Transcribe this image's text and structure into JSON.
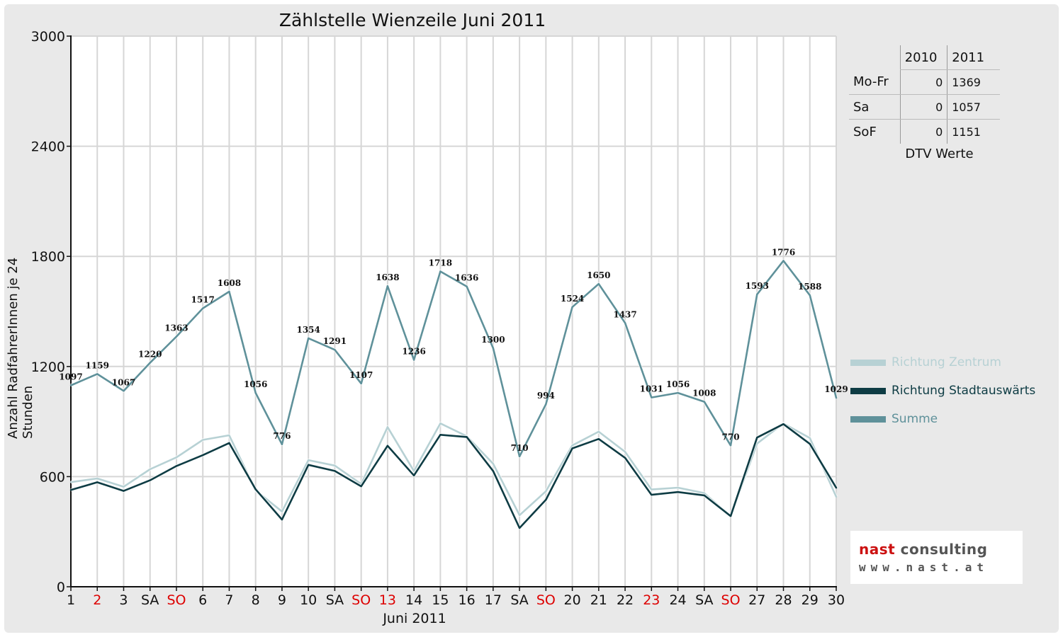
{
  "chart_data": {
    "type": "line",
    "title": "Zählstelle Wienzeile Juni 2011",
    "xlabel": "Juni 2011",
    "ylabel": "Anzahl RadfahrerInnen je 24 Stunden",
    "ylim": [
      0,
      3000
    ],
    "yticks": [
      0,
      600,
      1200,
      1800,
      2400,
      3000
    ],
    "grid": true,
    "legend_position": "right",
    "x_labels": [
      "1",
      "2",
      "3",
      "SA",
      "SO",
      "6",
      "7",
      "8",
      "9",
      "10",
      "SA",
      "SO",
      "13",
      "14",
      "15",
      "16",
      "17",
      "SA",
      "SO",
      "20",
      "21",
      "22",
      "23",
      "24",
      "SA",
      "SO",
      "27",
      "28",
      "29",
      "30"
    ],
    "x_label_colors": [
      "#111111",
      "#dd0000",
      "#111111",
      "#111111",
      "#dd0000",
      "#111111",
      "#111111",
      "#111111",
      "#111111",
      "#111111",
      "#111111",
      "#dd0000",
      "#dd0000",
      "#111111",
      "#111111",
      "#111111",
      "#111111",
      "#111111",
      "#dd0000",
      "#111111",
      "#111111",
      "#111111",
      "#dd0000",
      "#111111",
      "#111111",
      "#dd0000",
      "#111111",
      "#111111",
      "#111111",
      "#111111"
    ],
    "series": [
      {
        "name": "Richtung Zentrum",
        "color": "#b7d1d4",
        "values": [
          570,
          590,
          545,
          640,
          705,
          800,
          825,
          525,
          410,
          690,
          660,
          560,
          870,
          630,
          890,
          820,
          670,
          390,
          520,
          770,
          845,
          735,
          530,
          540,
          510,
          385,
          780,
          890,
          810,
          490
        ]
      },
      {
        "name": "Richtung Stadtauswärts",
        "color": "#0e3c44",
        "values": [
          527,
          569,
          522,
          580,
          658,
          717,
          783,
          531,
          366,
          664,
          631,
          547,
          768,
          606,
          828,
          816,
          630,
          320,
          474,
          754,
          805,
          702,
          501,
          516,
          498,
          385,
          813,
          886,
          778,
          539
        ]
      },
      {
        "name": "Summe",
        "color": "#5f919a",
        "values": [
          1097,
          1159,
          1067,
          1220,
          1363,
          1517,
          1608,
          1056,
          776,
          1354,
          1291,
          1107,
          1638,
          1236,
          1718,
          1636,
          1300,
          710,
          994,
          1524,
          1650,
          1437,
          1031,
          1056,
          1008,
          770,
          1593,
          1776,
          1588,
          1029
        ]
      }
    ],
    "data_labels": [
      "1097",
      "1159",
      "1067",
      "1220",
      "1363",
      "1517",
      "1608",
      "1056",
      "776",
      "1354",
      "1291",
      "1107",
      "1638",
      "1236",
      "1718",
      "1636",
      "1300",
      "710",
      "994",
      "1524",
      "1650",
      "1437",
      "1031",
      "1056",
      "1008",
      "770",
      "1593",
      "1776",
      "1588",
      "1029"
    ]
  },
  "dtv_table": {
    "header": [
      "",
      "2010",
      "2011"
    ],
    "rows": [
      {
        "label": "Mo-Fr",
        "v2010": "0",
        "v2011": "1369"
      },
      {
        "label": "Sa",
        "v2010": "0",
        "v2011": "1057"
      },
      {
        "label": "SoF",
        "v2010": "0",
        "v2011": "1151"
      }
    ],
    "caption": "DTV Werte"
  },
  "logo": {
    "line1_red": "nast",
    "line1_grey": " consulting",
    "line2": "www.nast.at"
  }
}
